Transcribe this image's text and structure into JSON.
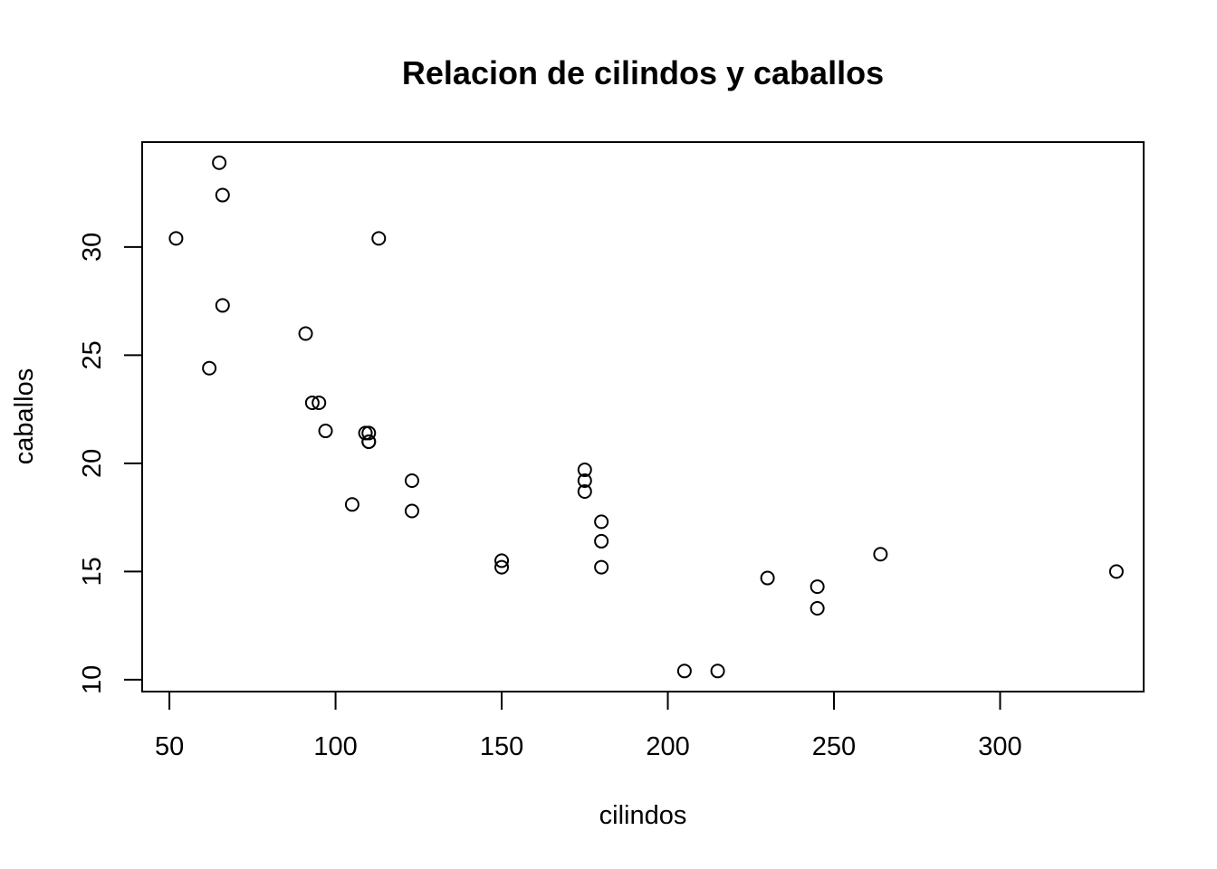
{
  "chart_data": {
    "type": "scatter",
    "title": "Relacion de cilindos y caballos",
    "xlabel": "cilindos",
    "ylabel": "caballos",
    "xlim": [
      41.8,
      343.2
    ],
    "ylim": [
      9.45,
      34.85
    ],
    "xticks": [
      50,
      100,
      150,
      200,
      250,
      300
    ],
    "yticks": [
      10,
      15,
      20,
      25,
      30
    ],
    "grid": false,
    "legend": "none",
    "point_color": "#000000",
    "points": [
      {
        "x": 52,
        "y": 30.4
      },
      {
        "x": 65,
        "y": 33.9
      },
      {
        "x": 66,
        "y": 32.4
      },
      {
        "x": 66,
        "y": 27.3
      },
      {
        "x": 62,
        "y": 24.4
      },
      {
        "x": 91,
        "y": 26.0
      },
      {
        "x": 93,
        "y": 22.8
      },
      {
        "x": 95,
        "y": 22.8
      },
      {
        "x": 97,
        "y": 21.5
      },
      {
        "x": 109,
        "y": 21.4
      },
      {
        "x": 110,
        "y": 21.4
      },
      {
        "x": 110,
        "y": 21.0
      },
      {
        "x": 110,
        "y": 21.0
      },
      {
        "x": 113,
        "y": 30.4
      },
      {
        "x": 105,
        "y": 18.1
      },
      {
        "x": 123,
        "y": 19.2
      },
      {
        "x": 123,
        "y": 17.8
      },
      {
        "x": 150,
        "y": 15.5
      },
      {
        "x": 150,
        "y": 15.2
      },
      {
        "x": 175,
        "y": 19.7
      },
      {
        "x": 175,
        "y": 19.2
      },
      {
        "x": 175,
        "y": 18.7
      },
      {
        "x": 180,
        "y": 17.3
      },
      {
        "x": 180,
        "y": 16.4
      },
      {
        "x": 180,
        "y": 15.2
      },
      {
        "x": 205,
        "y": 10.4
      },
      {
        "x": 215,
        "y": 10.4
      },
      {
        "x": 230,
        "y": 14.7
      },
      {
        "x": 245,
        "y": 14.3
      },
      {
        "x": 245,
        "y": 13.3
      },
      {
        "x": 264,
        "y": 15.8
      },
      {
        "x": 335,
        "y": 15.0
      }
    ]
  }
}
